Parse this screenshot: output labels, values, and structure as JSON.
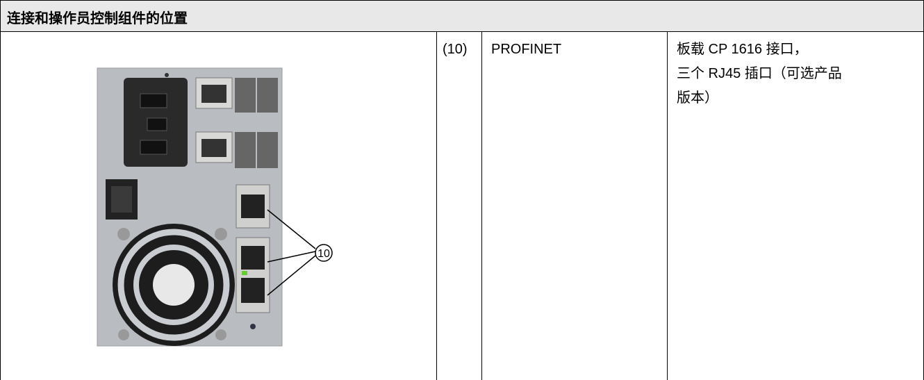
{
  "header": {
    "title": "连接和操作员控制组件的位置"
  },
  "image": {
    "callout": "10"
  },
  "table": {
    "rows": [
      [
        "(10)",
        "PROFINET",
        [
          "板载 CP 1616 接口，",
          "三个 RJ45 插口（可选产品",
          "版本）"
        ]
      ]
    ]
  }
}
